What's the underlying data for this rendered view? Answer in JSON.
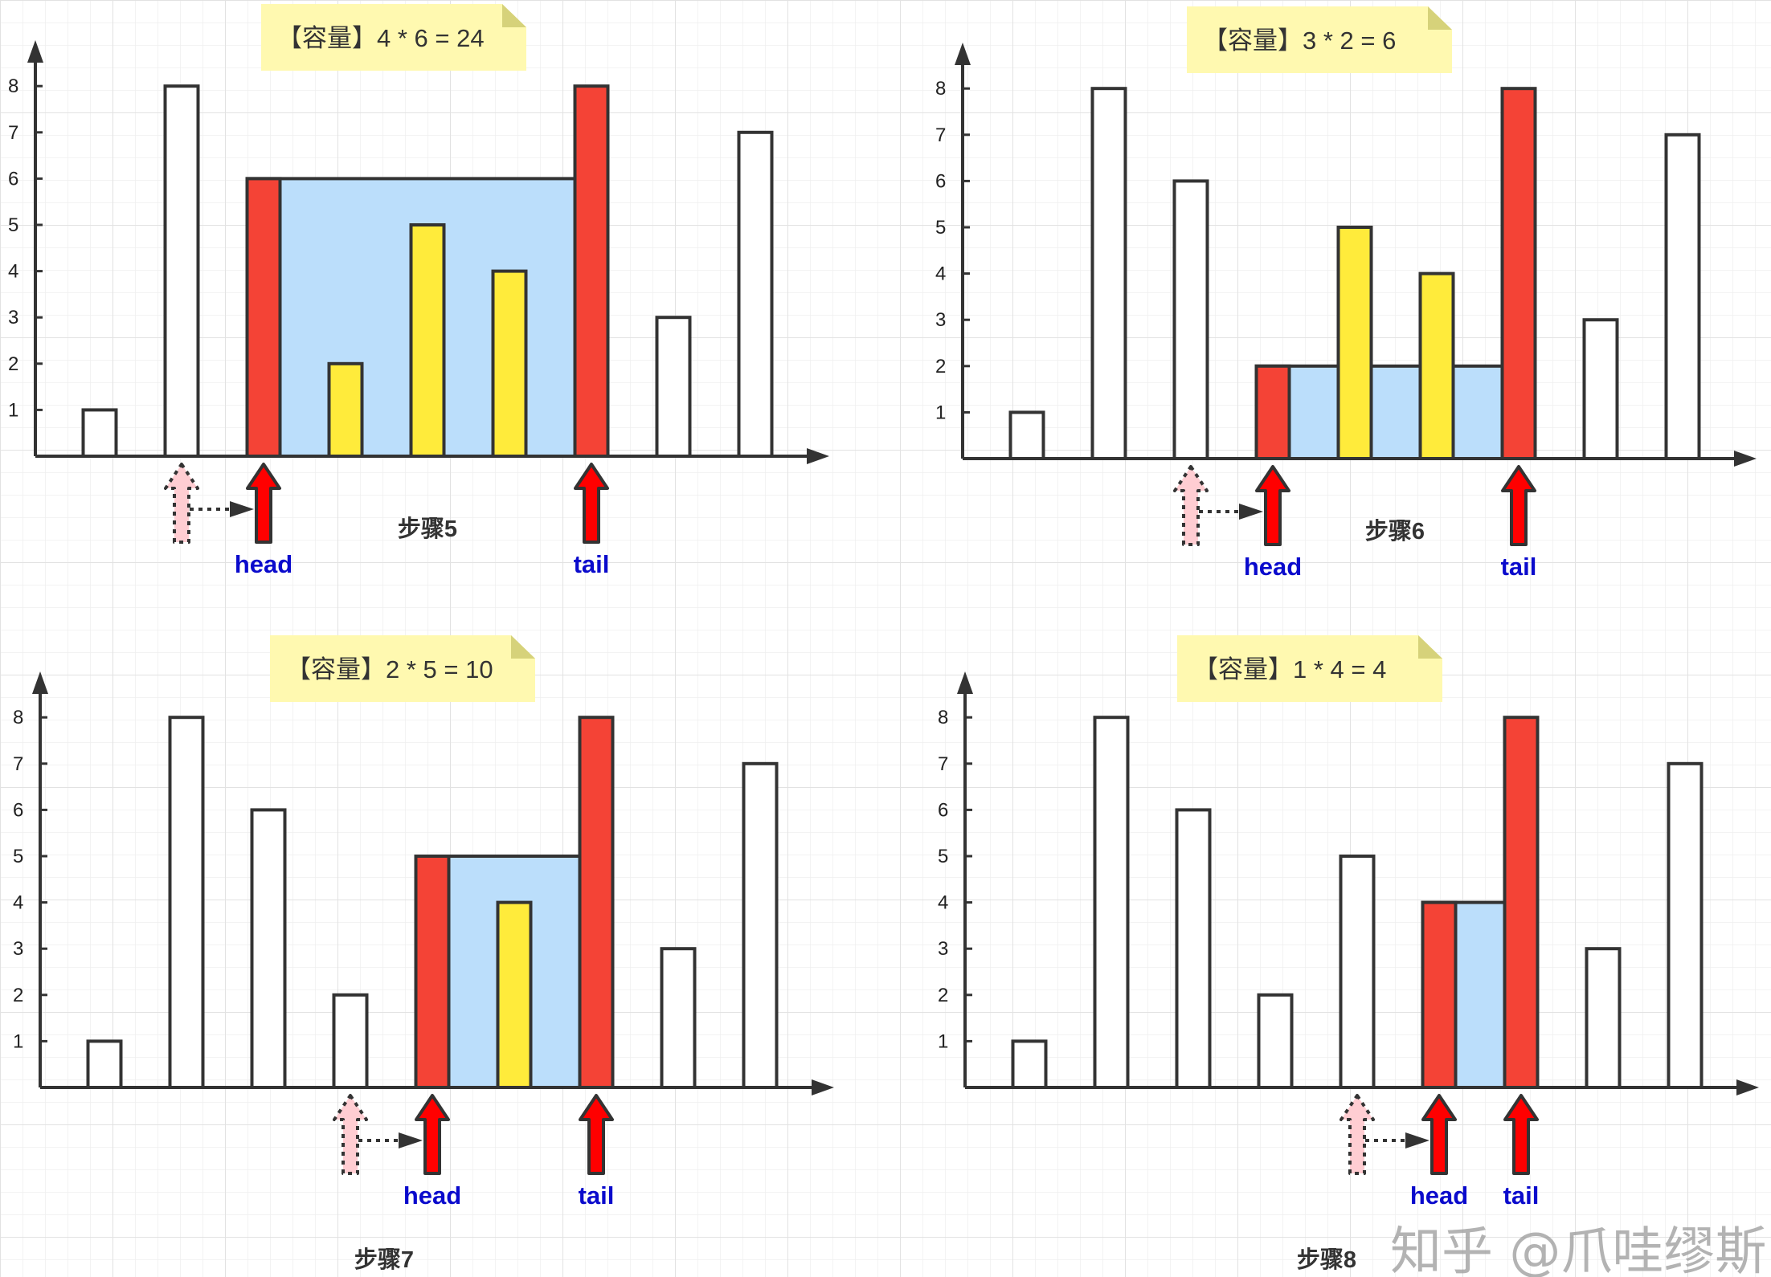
{
  "colors": {
    "pointer_bar": "#f44336",
    "inside_bar": "#ffeb3b",
    "water": "#bbdefb",
    "empty_bar": "#ffffff",
    "note": "#fff9b0",
    "pointer_label": "#0a0acc",
    "prev_arrow": "#ffcdd2"
  },
  "heights": [
    1,
    8,
    6,
    2,
    5,
    4,
    8,
    3,
    7
  ],
  "y_ticks": [
    "1",
    "2",
    "3",
    "4",
    "5",
    "6",
    "7",
    "8"
  ],
  "pointer_labels": {
    "head": "head",
    "tail": "tail"
  },
  "panels": [
    {
      "note": "【容量】4 * 6 = 24",
      "step": "步骤5",
      "head": 2,
      "tail": 6,
      "prev_head": 1,
      "water": 6,
      "inside": [
        3,
        4,
        5
      ]
    },
    {
      "note": "【容量】3 * 2 = 6",
      "step": "步骤6",
      "head": 3,
      "tail": 6,
      "prev_head": 2,
      "water": 2,
      "inside": [
        4,
        5
      ]
    },
    {
      "note": "【容量】2 * 5 = 10",
      "step": "步骤7",
      "head": 4,
      "tail": 6,
      "prev_head": 3,
      "water": 5,
      "inside": [
        5
      ]
    },
    {
      "note": "【容量】1 * 4 = 4",
      "step": "步骤8",
      "head": 5,
      "tail": 6,
      "prev_head": 4,
      "water": 4,
      "inside": []
    }
  ],
  "watermark": "知乎 @爪哇缪斯"
}
